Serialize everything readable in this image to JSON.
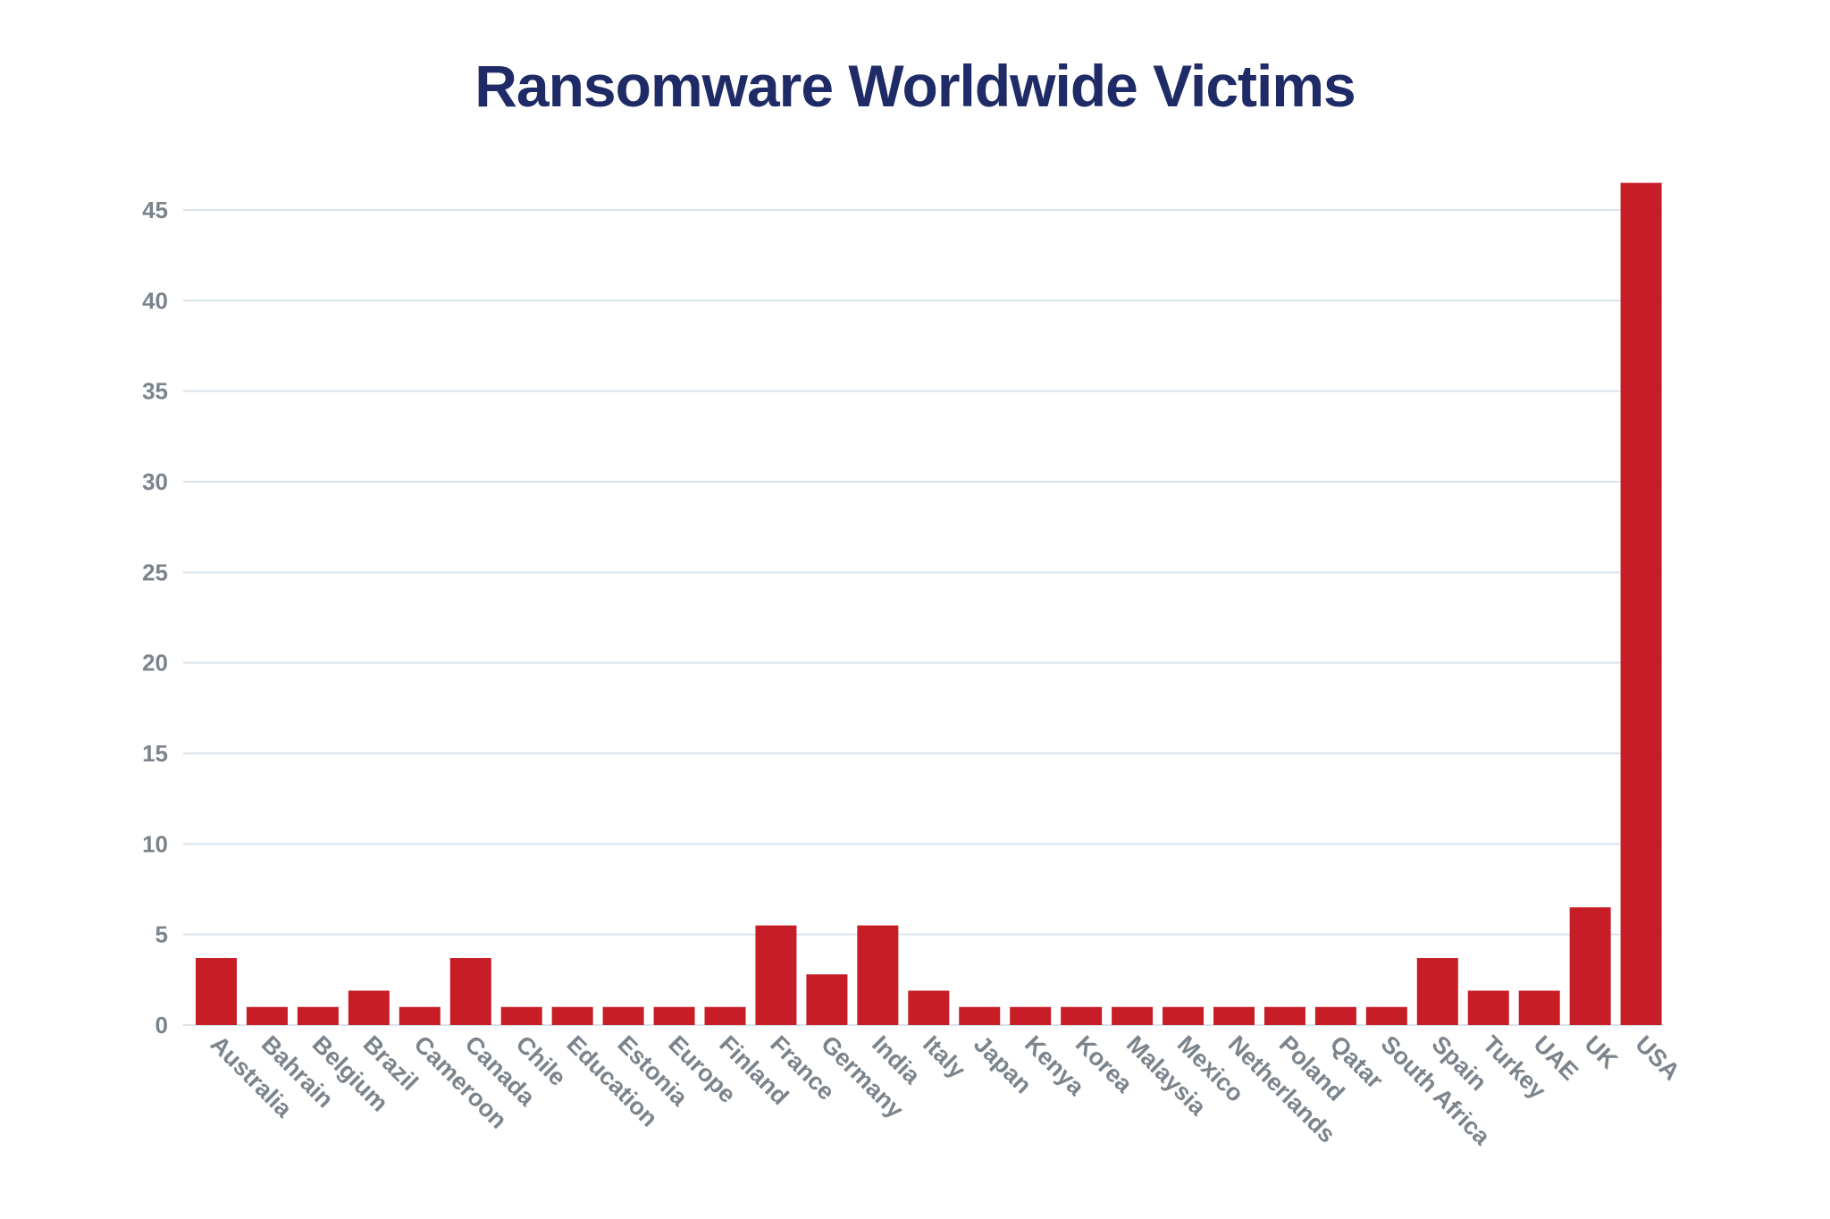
{
  "chart_data": {
    "type": "bar",
    "title": "Ransomware Worldwide Victims",
    "xlabel": "",
    "ylabel": "",
    "categories": [
      "Australia",
      "Bahrain",
      "Belgium",
      "Brazil",
      "Cameroon",
      "Canada",
      "Chile",
      "Education",
      "Estonia",
      "Europe",
      "Finland",
      "France",
      "Germany",
      "India",
      "Italy",
      "Japan",
      "Kenya",
      "Korea",
      "Malaysia",
      "Mexico",
      "Netherlands",
      "Poland",
      "Qatar",
      "South Africa",
      "Spain",
      "Turkey",
      "UAE",
      "UK",
      "USA"
    ],
    "values": [
      3.7,
      1,
      1,
      1.9,
      1,
      3.7,
      1,
      1,
      1,
      1,
      1,
      5.5,
      2.8,
      5.5,
      1.9,
      1,
      1,
      1,
      1,
      1,
      1,
      1,
      1,
      1,
      3.7,
      1.9,
      1.9,
      6.5,
      46.5
    ],
    "ylim": [
      0,
      45
    ],
    "yticks": [
      "0",
      "5",
      "10",
      "15",
      "20",
      "25",
      "30",
      "35",
      "40",
      "45"
    ],
    "grid": true,
    "bar_color": "#c71d27"
  }
}
